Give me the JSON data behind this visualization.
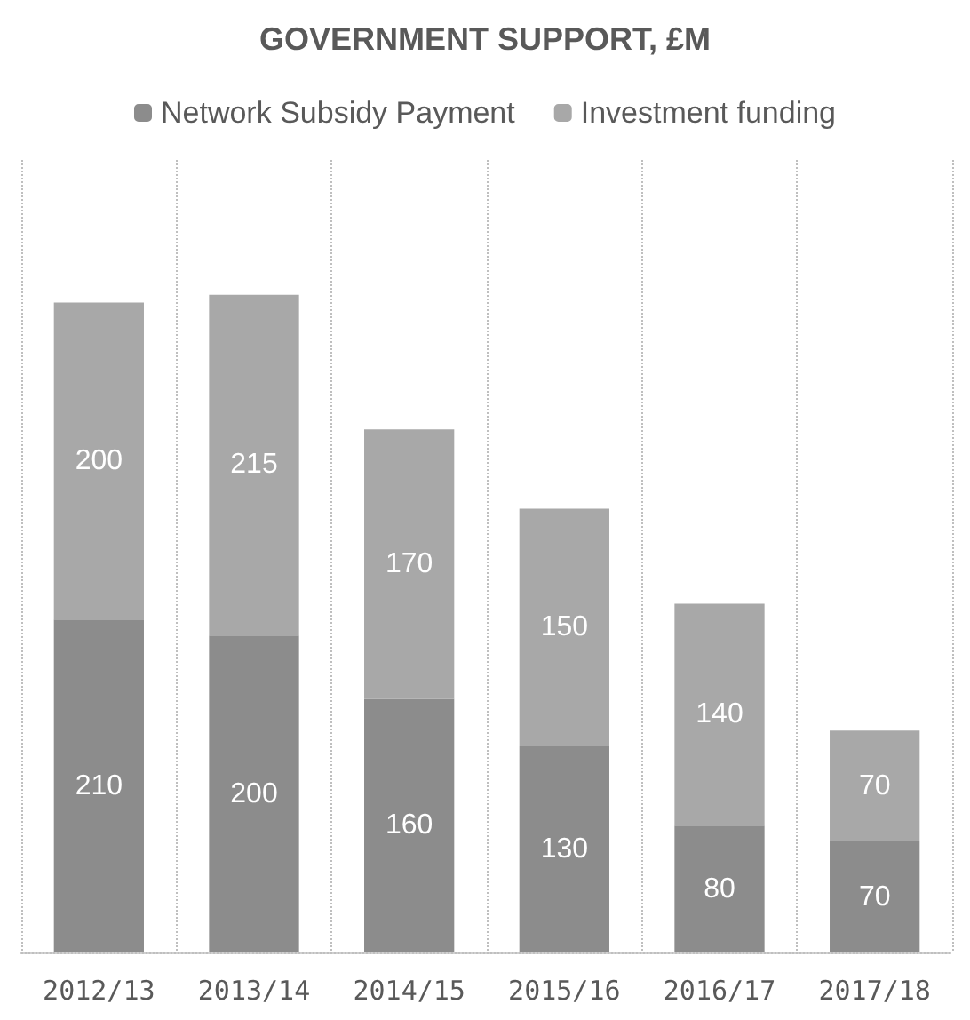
{
  "chart_data": {
    "type": "bar",
    "title": "GOVERNMENT SUPPORT, £M",
    "categories": [
      "2012/13",
      "2013/14",
      "2014/15",
      "2015/16",
      "2016/17",
      "2017/18"
    ],
    "stacked": true,
    "data_labels": true,
    "grid": "x",
    "legend": "top",
    "series": [
      {
        "name": "Network Subsidy Payment",
        "color": "#8c8c8c",
        "values": [
          210,
          200,
          160,
          130,
          80,
          70
        ]
      },
      {
        "name": "Investment funding",
        "color": "#a8a8a8",
        "values": [
          200,
          215,
          170,
          150,
          140,
          70
        ]
      }
    ]
  }
}
